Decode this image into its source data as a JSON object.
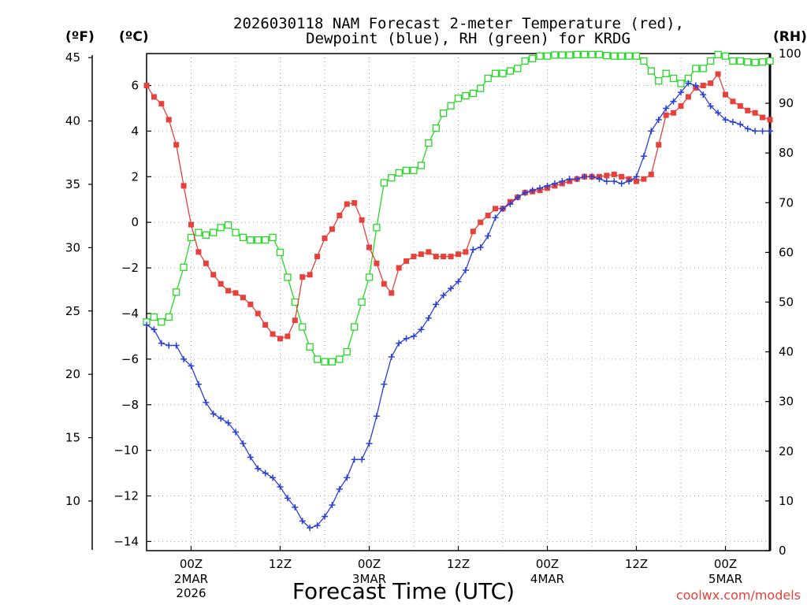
{
  "chart_data": {
    "type": "line",
    "title_line1": "2026030118 NAM Forecast 2-meter Temperature (red),",
    "title_line2": "Dewpoint (blue), RH (green) for KRDG",
    "units": {
      "fahrenheit": "(ºF)",
      "celsius": "(ºC)",
      "rh": "(RH)"
    },
    "xlabel": "Forecast Time (UTC)",
    "credit": "coolwx.com/models",
    "x_start_hour": -6,
    "x_end_hour": 78,
    "left_axis_celsius": {
      "min": -14.4,
      "max": 7.4,
      "ticks": [
        -14,
        -12,
        -10,
        -8,
        -6,
        -4,
        -2,
        0,
        2,
        4,
        6
      ],
      "labels": [
        "−14",
        "−12",
        "−10",
        "−8",
        "−6",
        "−4",
        "−2",
        "0",
        "2",
        "4",
        "6"
      ]
    },
    "left_axis_fahrenheit": {
      "ticks": [
        10,
        15,
        20,
        25,
        30,
        35,
        40,
        45
      ],
      "labels": [
        "10",
        "15",
        "20",
        "25",
        "30",
        "35",
        "40",
        "45"
      ]
    },
    "right_axis_rh": {
      "min": 0,
      "max": 100,
      "ticks": [
        0,
        10,
        20,
        30,
        40,
        50,
        60,
        70,
        80,
        90,
        100
      ],
      "labels": [
        "0",
        "10",
        "20",
        "30",
        "40",
        "50",
        "60",
        "70",
        "80",
        "90",
        "100"
      ]
    },
    "x_ticks": [
      {
        "hour": 0,
        "line1": "00Z",
        "line2": "2MAR",
        "line3": "2026"
      },
      {
        "hour": 12,
        "line1": "12Z",
        "line2": "",
        "line3": ""
      },
      {
        "hour": 24,
        "line1": "00Z",
        "line2": "3MAR",
        "line3": ""
      },
      {
        "hour": 36,
        "line1": "12Z",
        "line2": "",
        "line3": ""
      },
      {
        "hour": 48,
        "line1": "00Z",
        "line2": "4MAR",
        "line3": ""
      },
      {
        "hour": 60,
        "line1": "12Z",
        "line2": "",
        "line3": ""
      },
      {
        "hour": 72,
        "line1": "00Z",
        "line2": "5MAR",
        "line3": ""
      }
    ],
    "series": [
      {
        "name": "Temperature",
        "color": "#e8403a",
        "marker": "filled-square",
        "axis": "celsius",
        "x": [
          -6,
          -5,
          -4,
          -3,
          -2,
          -1,
          0,
          1,
          2,
          3,
          4,
          5,
          6,
          7,
          8,
          9,
          10,
          11,
          12,
          13,
          14,
          15,
          16,
          17,
          18,
          19,
          20,
          21,
          22,
          23,
          24,
          25,
          26,
          27,
          28,
          29,
          30,
          31,
          32,
          33,
          34,
          35,
          36,
          37,
          38,
          39,
          40,
          41,
          42,
          43,
          44,
          45,
          46,
          47,
          48,
          49,
          50,
          51,
          52,
          53,
          54,
          55,
          56,
          57,
          58,
          59,
          60,
          61,
          62,
          63,
          64,
          65,
          66,
          67,
          68,
          69,
          70,
          71,
          72,
          73,
          74,
          75,
          76,
          77,
          78
        ],
        "values": [
          6.0,
          5.5,
          5.2,
          4.5,
          3.4,
          1.6,
          -0.1,
          -1.3,
          -1.8,
          -2.3,
          -2.7,
          -3.0,
          -3.1,
          -3.3,
          -3.6,
          -4.0,
          -4.5,
          -4.9,
          -5.1,
          -5.0,
          -4.3,
          -2.4,
          -2.3,
          -1.5,
          -0.7,
          -0.3,
          0.3,
          0.8,
          0.85,
          0.1,
          -1.1,
          -1.8,
          -2.7,
          -3.1,
          -2.0,
          -1.7,
          -1.5,
          -1.4,
          -1.3,
          -1.5,
          -1.5,
          -1.5,
          -1.4,
          -1.3,
          -0.4,
          0.0,
          0.3,
          0.6,
          0.6,
          0.9,
          1.1,
          1.3,
          1.35,
          1.4,
          1.5,
          1.6,
          1.7,
          1.8,
          1.9,
          2.0,
          2.0,
          2.0,
          2.05,
          2.1,
          2.0,
          1.9,
          1.8,
          1.9,
          2.1,
          3.4,
          4.7,
          4.8,
          5.1,
          5.5,
          5.9,
          6.0,
          6.1,
          6.5,
          5.6,
          5.3,
          5.1,
          4.9,
          4.8,
          4.6,
          4.5
        ]
      },
      {
        "name": "Dewpoint",
        "color": "#2a3fd8",
        "marker": "plus",
        "axis": "celsius",
        "x": [
          -6,
          -5,
          -4,
          -3,
          -2,
          -1,
          0,
          1,
          2,
          3,
          4,
          5,
          6,
          7,
          8,
          9,
          10,
          11,
          12,
          13,
          14,
          15,
          16,
          17,
          18,
          19,
          20,
          21,
          22,
          23,
          24,
          25,
          26,
          27,
          28,
          29,
          30,
          31,
          32,
          33,
          34,
          35,
          36,
          37,
          38,
          39,
          40,
          41,
          42,
          43,
          44,
          45,
          46,
          47,
          48,
          49,
          50,
          51,
          52,
          53,
          54,
          55,
          56,
          57,
          58,
          59,
          60,
          61,
          62,
          63,
          64,
          65,
          66,
          67,
          68,
          69,
          70,
          71,
          72,
          73,
          74,
          75,
          76,
          77,
          78
        ],
        "values": [
          -4.5,
          -4.7,
          -5.3,
          -5.4,
          -5.4,
          -6.0,
          -6.3,
          -7.1,
          -7.9,
          -8.4,
          -8.6,
          -8.8,
          -9.2,
          -9.7,
          -10.3,
          -10.8,
          -11.0,
          -11.2,
          -11.6,
          -12.1,
          -12.5,
          -13.1,
          -13.4,
          -13.3,
          -12.9,
          -12.4,
          -11.7,
          -11.2,
          -10.4,
          -10.4,
          -9.7,
          -8.5,
          -7.1,
          -5.9,
          -5.3,
          -5.1,
          -5.0,
          -4.7,
          -4.2,
          -3.6,
          -3.2,
          -2.9,
          -2.6,
          -2.1,
          -1.2,
          -1.1,
          -0.6,
          0.2,
          0.6,
          0.8,
          1.1,
          1.3,
          1.4,
          1.5,
          1.6,
          1.7,
          1.8,
          1.9,
          1.9,
          2.0,
          2.0,
          1.9,
          1.8,
          1.8,
          1.7,
          1.8,
          2.0,
          2.9,
          4.0,
          4.5,
          5.0,
          5.3,
          5.7,
          6.1,
          6.0,
          5.6,
          5.1,
          4.8,
          4.5,
          4.4,
          4.3,
          4.1,
          4.0,
          4.0,
          4.0
        ]
      },
      {
        "name": "RH",
        "color": "#27d827",
        "marker": "open-square",
        "axis": "rh",
        "x": [
          -6,
          -5,
          -4,
          -3,
          -2,
          -1,
          0,
          1,
          2,
          3,
          4,
          5,
          6,
          7,
          8,
          9,
          10,
          11,
          12,
          13,
          14,
          15,
          16,
          17,
          18,
          19,
          20,
          21,
          22,
          23,
          24,
          25,
          26,
          27,
          28,
          29,
          30,
          31,
          32,
          33,
          34,
          35,
          36,
          37,
          38,
          39,
          40,
          41,
          42,
          43,
          44,
          45,
          46,
          47,
          48,
          49,
          50,
          51,
          52,
          53,
          54,
          55,
          56,
          57,
          58,
          59,
          60,
          61,
          62,
          63,
          64,
          65,
          66,
          67,
          68,
          69,
          70,
          71,
          72,
          73,
          74,
          75,
          76,
          77,
          78
        ],
        "values": [
          46,
          47,
          46,
          47,
          52,
          57,
          63,
          64,
          63.5,
          64,
          65,
          65.5,
          64,
          63,
          62.5,
          62.5,
          62.5,
          63,
          60,
          55,
          50,
          45,
          41,
          38.5,
          38,
          38,
          38.5,
          40,
          45,
          50,
          55,
          65,
          74,
          75,
          76,
          76.5,
          76.5,
          77.5,
          82,
          85,
          88,
          89.5,
          91,
          91.5,
          92,
          93,
          95,
          96,
          96,
          96.5,
          97,
          98.5,
          99,
          99.5,
          99.5,
          99.7,
          99.7,
          99.7,
          99.8,
          99.8,
          99.8,
          99.8,
          99.6,
          99.5,
          99.5,
          99.5,
          99.5,
          98.5,
          96.5,
          94.5,
          96,
          95,
          94,
          95,
          97,
          97,
          98.5,
          99.8,
          99.5,
          98.5,
          98.5,
          98.3,
          98.2,
          98.3,
          98.5
        ]
      }
    ]
  }
}
